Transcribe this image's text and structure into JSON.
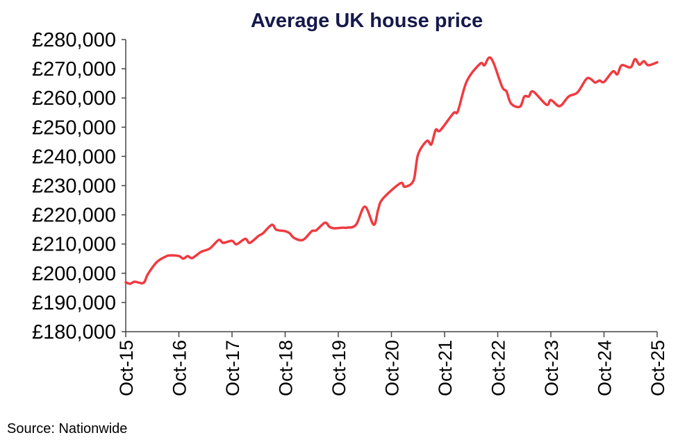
{
  "chart_data": {
    "type": "line",
    "title": "Average UK house price",
    "xlabel": "",
    "ylabel": "",
    "ylim": [
      180000,
      280000
    ],
    "y_ticks": [
      "£180,000",
      "£190,000",
      "£200,000",
      "£210,000",
      "£220,000",
      "£230,000",
      "£240,000",
      "£250,000",
      "£260,000",
      "£270,000",
      "£280,000"
    ],
    "x_ticks": [
      "Oct-15",
      "Oct-16",
      "Oct-17",
      "Oct-18",
      "Oct-19",
      "Oct-20",
      "Oct-21",
      "Oct-22",
      "Oct-23",
      "Oct-24",
      "Oct-25"
    ],
    "xlim": [
      "2015-10",
      "2025-10"
    ],
    "grid": false,
    "line_color": "#f03a40",
    "series": [
      {
        "x": [
          "2015-10",
          "2015-11",
          "2015-12",
          "2016-02",
          "2016-03",
          "2016-05",
          "2016-07",
          "2016-08",
          "2016-10",
          "2016-11",
          "2016-12",
          "2017-01",
          "2017-03",
          "2017-05",
          "2017-07",
          "2017-08",
          "2017-10",
          "2017-11",
          "2018-01",
          "2018-02",
          "2018-04",
          "2018-05",
          "2018-07",
          "2018-08",
          "2018-10",
          "2018-11",
          "2018-12",
          "2019-02",
          "2019-04",
          "2019-05",
          "2019-07",
          "2019-08",
          "2019-09",
          "2019-11",
          "2019-12",
          "2020-02",
          "2020-04",
          "2020-06",
          "2020-07",
          "2020-08",
          "2020-12",
          "2021-01",
          "2021-03",
          "2021-04",
          "2021-06",
          "2021-07",
          "2021-08",
          "2021-09",
          "2021-12",
          "2022-01",
          "2022-03",
          "2022-06",
          "2022-07",
          "2022-08",
          "2022-09",
          "2022-11",
          "2022-12",
          "2023-01",
          "2023-03",
          "2023-04",
          "2023-05",
          "2023-06",
          "2023-09",
          "2023-10",
          "2023-12",
          "2024-02",
          "2024-04",
          "2024-06",
          "2024-07",
          "2024-08",
          "2024-09",
          "2024-10",
          "2024-12",
          "2025-01",
          "2025-02",
          "2025-04",
          "2025-05",
          "2025-06",
          "2025-07",
          "2025-08",
          "2025-10"
        ],
        "values": [
          196900,
          196400,
          197100,
          196700,
          199700,
          203800,
          205700,
          206100,
          205900,
          205000,
          205900,
          205200,
          207300,
          208500,
          211400,
          210400,
          211100,
          209900,
          211800,
          210400,
          212800,
          213700,
          216600,
          214900,
          214400,
          213700,
          212100,
          211400,
          214400,
          214700,
          217300,
          215900,
          215400,
          215600,
          215600,
          216600,
          222800,
          216600,
          221800,
          225400,
          230800,
          229600,
          231800,
          240600,
          245300,
          244100,
          249100,
          248900,
          254800,
          255500,
          265700,
          271700,
          271200,
          273800,
          272200,
          263800,
          262200,
          258100,
          257000,
          260500,
          260500,
          262200,
          257700,
          259300,
          257200,
          260500,
          261900,
          266500,
          266500,
          265300,
          266000,
          265500,
          269100,
          268100,
          271200,
          270500,
          273300,
          271400,
          272600,
          271200,
          272200
        ]
      }
    ]
  },
  "source": "Source: Nationwide"
}
